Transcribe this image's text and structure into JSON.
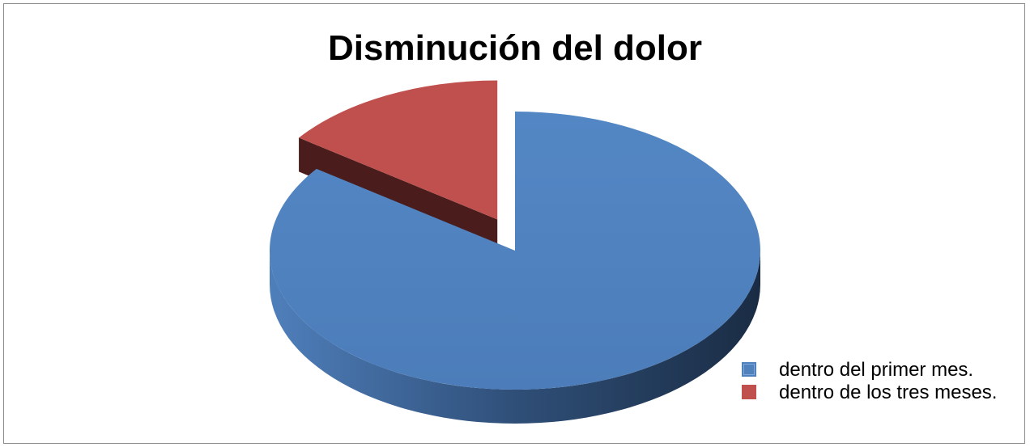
{
  "chart_data": {
    "type": "pie",
    "title": "Disminución del dolor",
    "categories": [
      "dentro del primer mes.",
      "dentro de los tres meses."
    ],
    "values": [
      85,
      15
    ],
    "unit": "percent",
    "colors": [
      "#4f81bd",
      "#c0504d"
    ],
    "dark_colors": [
      "#1f3552",
      "#4a1c1b"
    ],
    "exploded": [
      false,
      true
    ],
    "three_d": true,
    "legend_position": "bottom-right",
    "legend": [
      {
        "label": "dentro del primer mes.",
        "color": "#4f81bd"
      },
      {
        "label": "dentro de los tres meses.",
        "color": "#c0504d"
      }
    ]
  }
}
